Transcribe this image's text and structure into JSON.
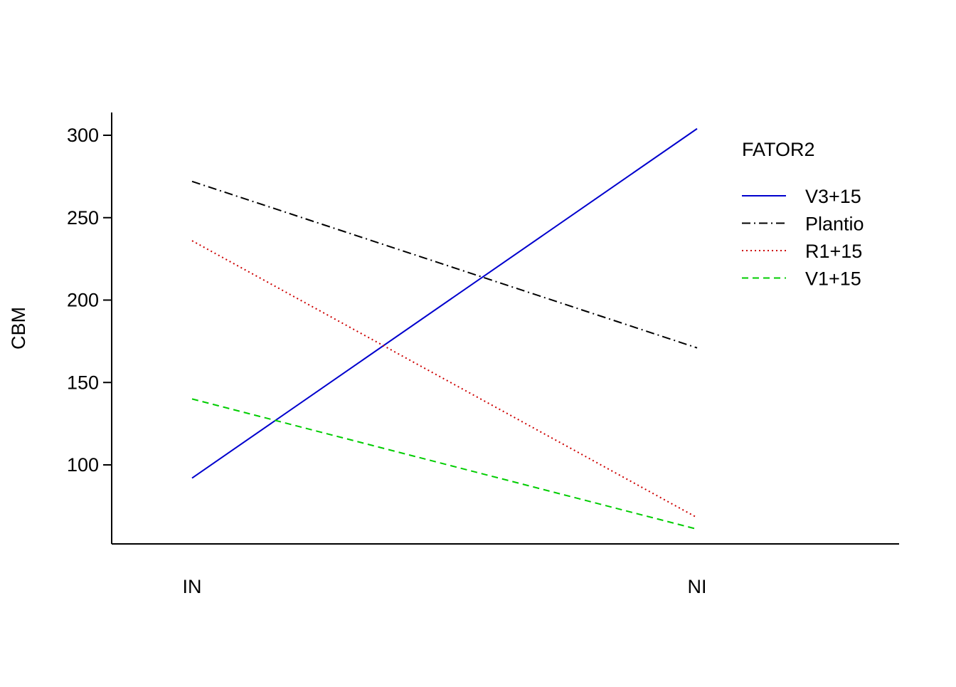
{
  "chart_data": {
    "type": "line",
    "title": "",
    "xlabel": "",
    "ylabel": "CBM",
    "categories": [
      "IN",
      "NI"
    ],
    "ylim": [
      52,
      314
    ],
    "yticks": [
      100,
      150,
      200,
      250,
      300
    ],
    "grid": false,
    "legend": {
      "title": "FATOR2",
      "placement": "top-right"
    },
    "series": [
      {
        "name": "V3+15",
        "values": [
          92,
          304
        ],
        "color": "#0000cd",
        "dash": "solid"
      },
      {
        "name": "Plantio",
        "values": [
          272,
          171
        ],
        "color": "#000000",
        "dash": "dashdot"
      },
      {
        "name": "R1+15",
        "values": [
          236,
          68
        ],
        "color": "#cd0000",
        "dash": "dotted"
      },
      {
        "name": "V1+15",
        "values": [
          140,
          61
        ],
        "color": "#00cd00",
        "dash": "dashed"
      }
    ]
  }
}
